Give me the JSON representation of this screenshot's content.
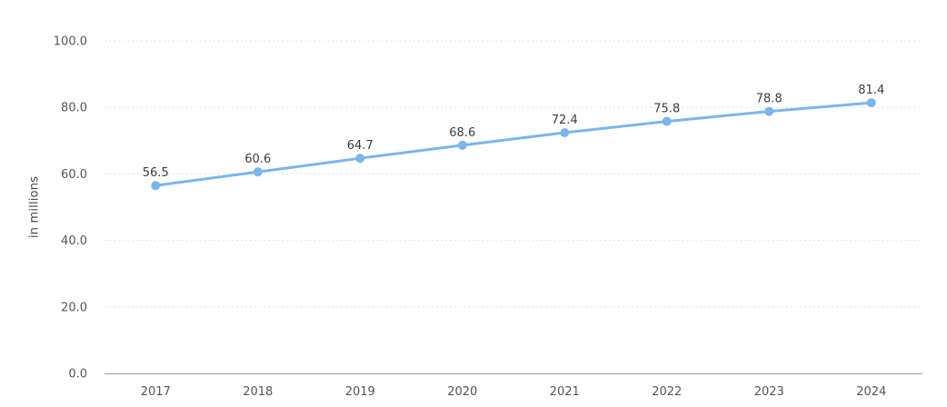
{
  "chart_data": {
    "type": "line",
    "title": "",
    "xlabel": "",
    "ylabel": "in millions",
    "categories": [
      "2017",
      "2018",
      "2019",
      "2020",
      "2021",
      "2022",
      "2023",
      "2024"
    ],
    "series": [
      {
        "values": [
          56.5,
          60.6,
          64.7,
          68.6,
          72.4,
          75.8,
          78.8,
          81.4
        ],
        "data_labels": [
          "56.5",
          "60.6",
          "64.7",
          "68.6",
          "72.4",
          "75.8",
          "78.8",
          "81.4"
        ],
        "color": "#7cb5ec"
      }
    ],
    "ylim": [
      0,
      100
    ],
    "yticks": [
      0,
      20,
      40,
      60,
      80,
      100
    ],
    "ytick_labels": [
      "0.0",
      "20.0",
      "40.0",
      "60.0",
      "80.0",
      "100.0"
    ],
    "grid": true,
    "grid_color": "#e6e6e6",
    "axis_color": "#999999",
    "legend": "none"
  }
}
